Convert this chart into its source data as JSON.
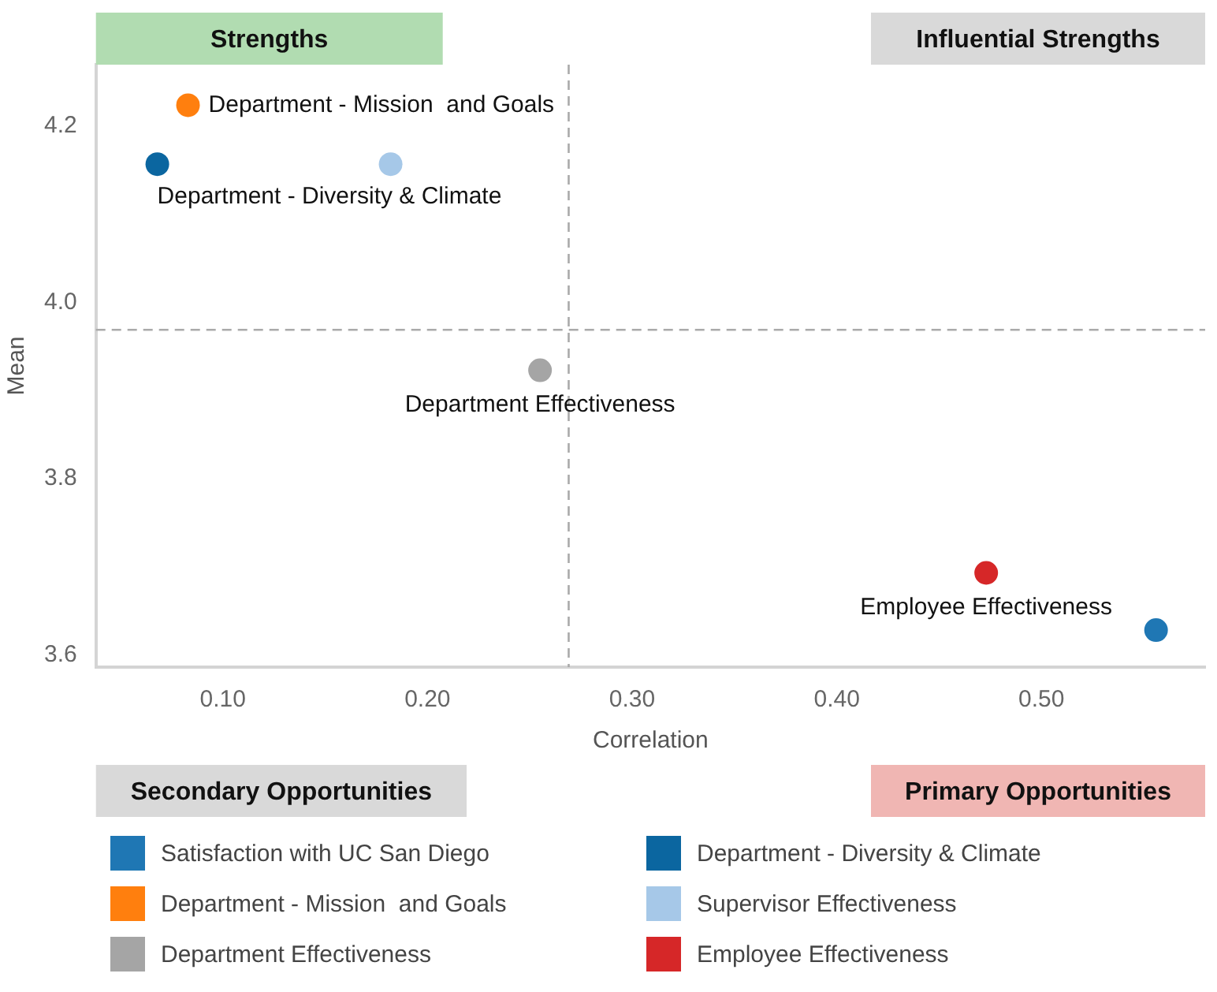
{
  "chart_data": {
    "type": "scatter",
    "xlabel": "Correlation",
    "ylabel": "Mean",
    "xlim": [
      0.038,
      0.58
    ],
    "xticks": [
      {
        "value": 0.1,
        "label": "0.10"
      },
      {
        "value": 0.2,
        "label": "0.20"
      },
      {
        "value": 0.3,
        "label": "0.30"
      },
      {
        "value": 0.4,
        "label": "0.40"
      },
      {
        "value": 0.5,
        "label": "0.50"
      }
    ],
    "ylim": [
      3.586,
      4.27
    ],
    "yticks": [
      3.6,
      3.8,
      {
        "value": 4.0,
        "label": "4.0"
      },
      4.2
    ],
    "grid": false,
    "legend": "bottom",
    "marker": "circle",
    "series": [
      {
        "name": "Satisfaction with UC San Diego",
        "color": "#1f77b4",
        "x": [
          0.556
        ],
        "values": [
          3.628
        ]
      },
      {
        "name": "Department - Diversity & Climate",
        "color": "#0b66a0",
        "x": [
          0.068
        ],
        "values": [
          4.157
        ]
      },
      {
        "name": "Department - Mission  and Goals",
        "color": "#ff7f0e",
        "x": [
          0.083
        ],
        "values": [
          4.224
        ]
      },
      {
        "name": "Supervisor Effectiveness",
        "color": "#a6c8e8",
        "x": [
          0.182
        ],
        "values": [
          4.157
        ]
      },
      {
        "name": "Department Effectiveness",
        "color": "#a5a5a5",
        "x": [
          0.255
        ],
        "values": [
          3.923
        ]
      },
      {
        "name": "Employee Effectiveness",
        "color": "#d62728",
        "x": [
          0.473
        ],
        "values": [
          3.693
        ]
      }
    ],
    "ref_lines": [
      {
        "axis": "x",
        "value": 0.269,
        "color": "#aaaaaa",
        "line_style": "dashed"
      },
      {
        "axis": "y",
        "value": 3.969,
        "color": "#aaaaaa",
        "line_style": "dashed"
      }
    ],
    "annotations": [
      "Strengths",
      "Influential Strengths",
      "Secondary Opportunities",
      "Primary Opportunities",
      {
        "text": "Department - Mission  and Goals",
        "x": 0.083,
        "y": 4.224
      },
      {
        "text": "Department - Diversity & Climate",
        "x": 0.068,
        "y": 4.157
      },
      {
        "text": "Department Effectiveness",
        "x": 0.255,
        "y": 3.923
      },
      {
        "text": "Employee Effectiveness",
        "x": 0.473,
        "y": 3.693
      }
    ]
  }
}
